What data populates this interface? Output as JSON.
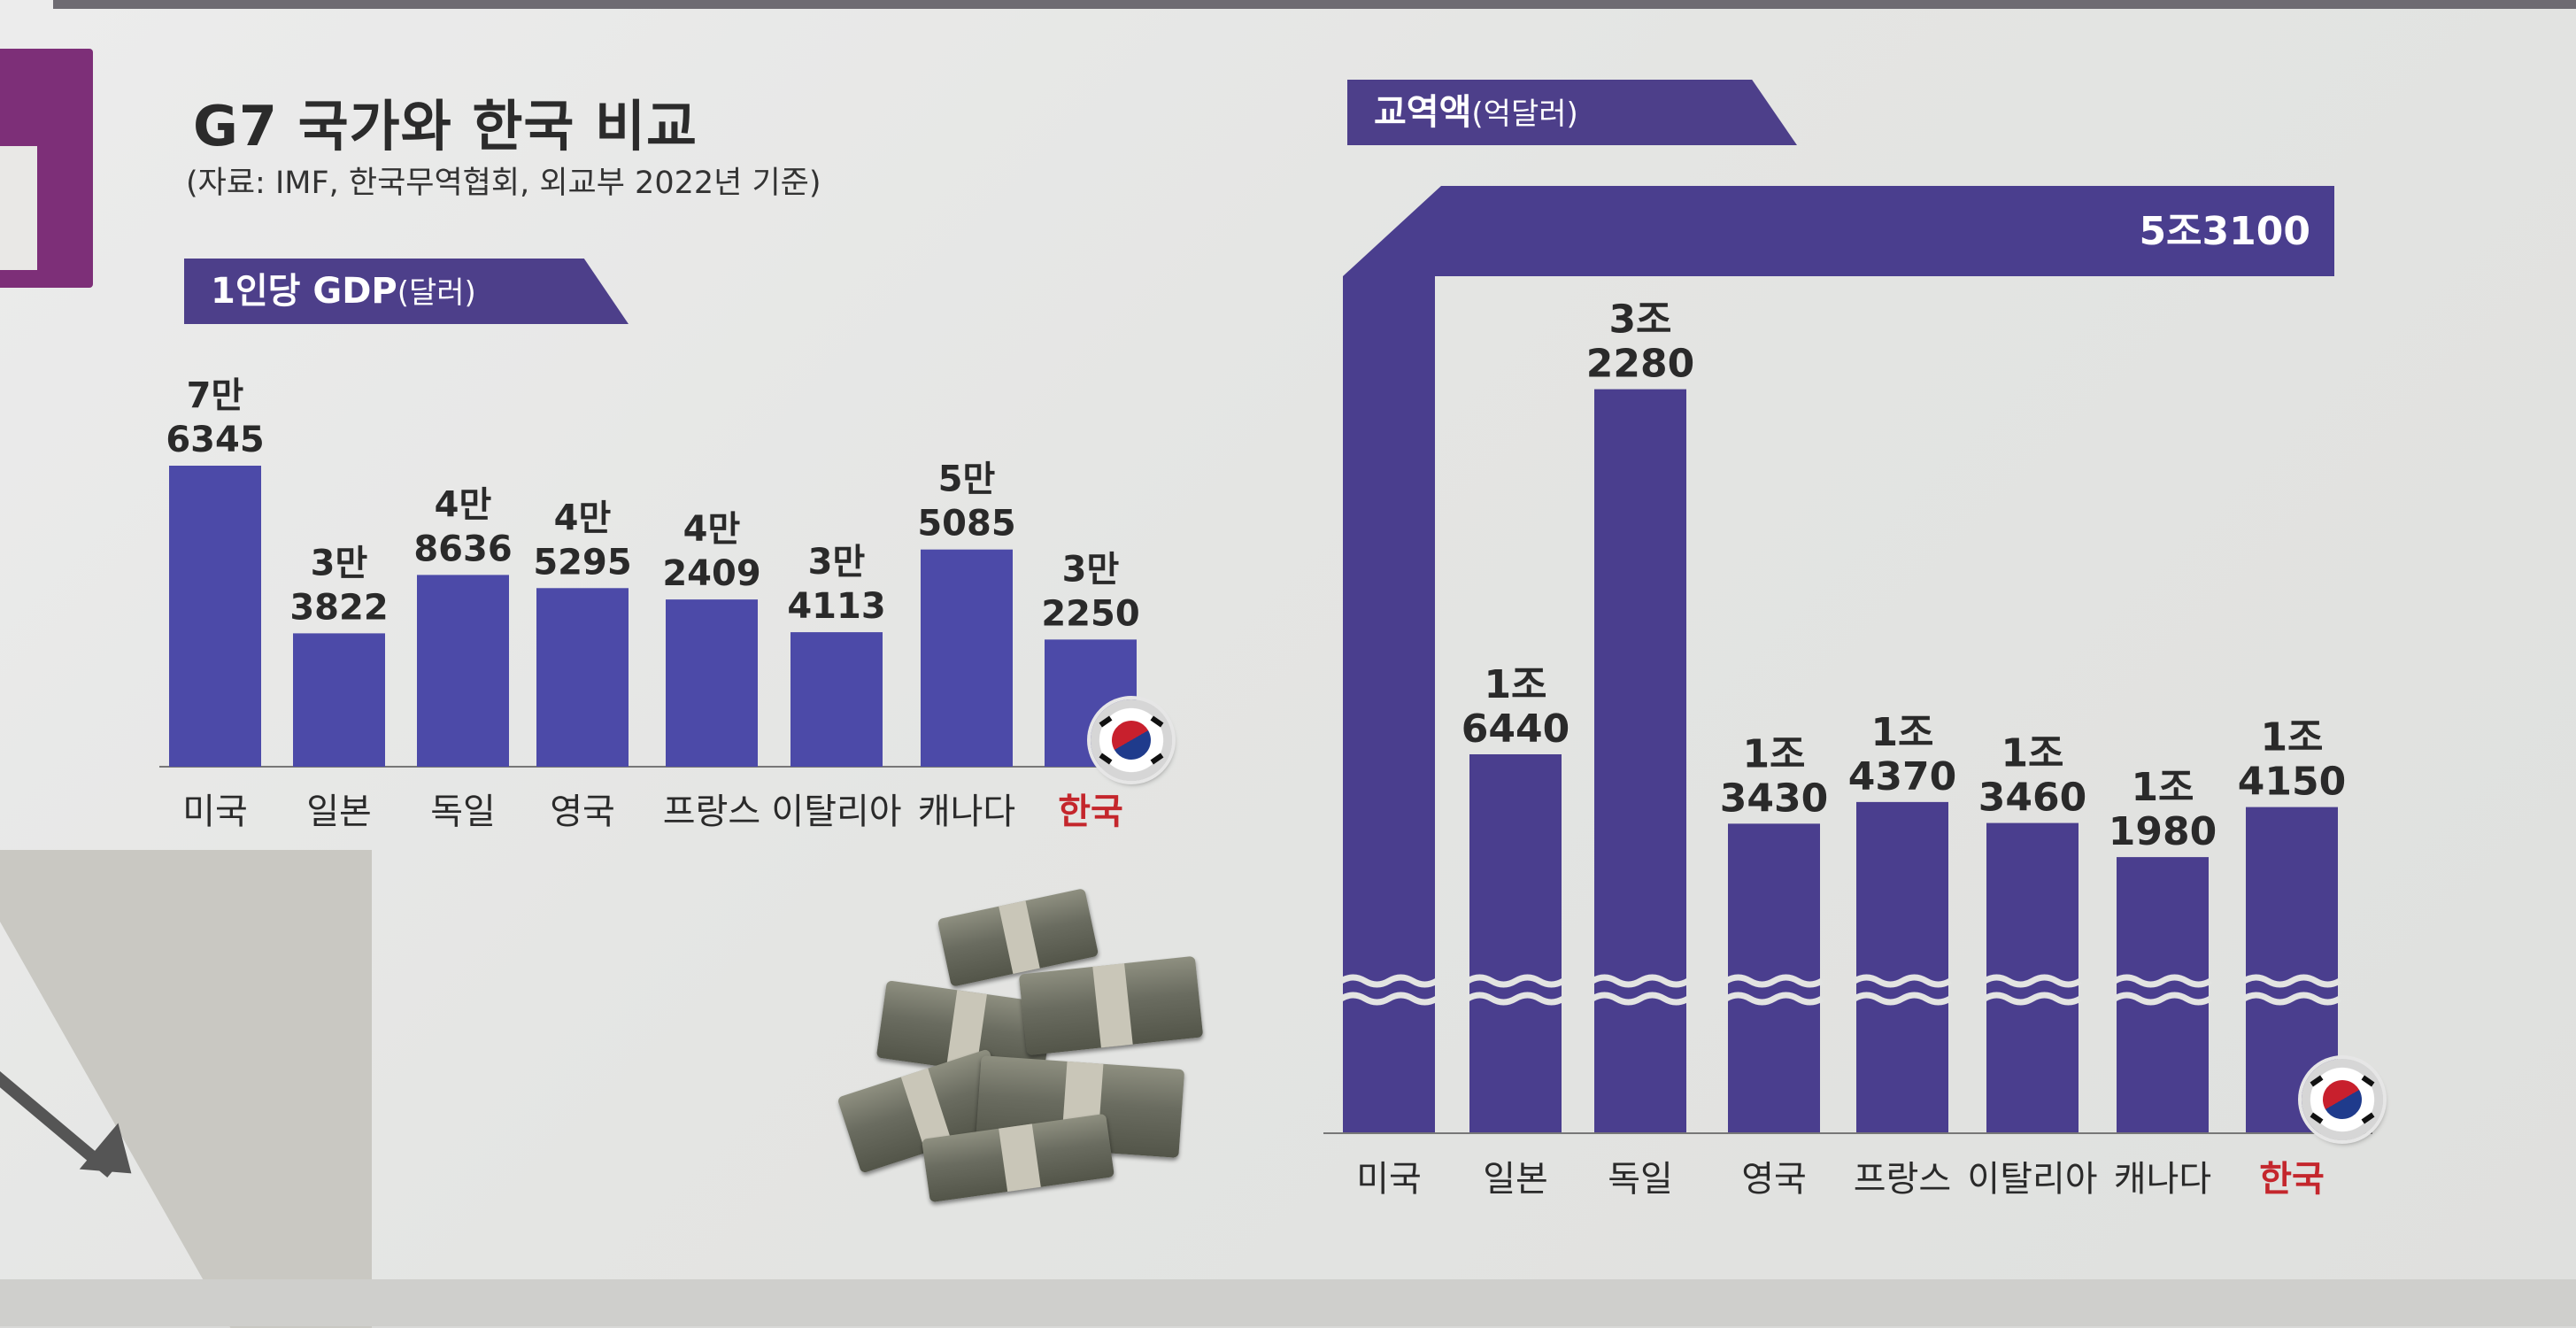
{
  "title": "G7 국가와 한국 비교",
  "source": "(자료: IMF, 한국무역협회, 외교부 2022년 기준)",
  "panels": {
    "gdp": {
      "tag": "1인당 GDP",
      "unit": "(달러)"
    },
    "trade": {
      "tag": "교역액",
      "unit": "(억달러)"
    }
  },
  "colors": {
    "bar_gdp": "#4c4aa8",
    "bar_trade": "#4a3e8e",
    "highlight_label": "#c4262c"
  },
  "icons": [
    "korea-flag-icon",
    "money-stack-icon",
    "wave-break-icon",
    "arrow-icon"
  ],
  "chart_data": [
    {
      "type": "bar",
      "title": "1인당 GDP(달러)",
      "categories": [
        "미국",
        "일본",
        "독일",
        "영국",
        "프랑스",
        "이탈리아",
        "캐나다",
        "한국"
      ],
      "values": [
        76345,
        33822,
        48636,
        45295,
        42409,
        34113,
        55085,
        32250
      ],
      "data_labels": [
        [
          "7만",
          "6345"
        ],
        [
          "3만",
          "3822"
        ],
        [
          "4만",
          "8636"
        ],
        [
          "4만",
          "5295"
        ],
        [
          "4만",
          "2409"
        ],
        [
          "3만",
          "4113"
        ],
        [
          "5만",
          "5085"
        ],
        [
          "3만",
          "2250"
        ]
      ],
      "highlight": "한국",
      "ylim": [
        0,
        80000
      ]
    },
    {
      "type": "bar",
      "title": "교역액(억달러)",
      "categories": [
        "미국",
        "일본",
        "독일",
        "영국",
        "프랑스",
        "이탈리아",
        "캐나다",
        "한국"
      ],
      "values": [
        53100,
        16440,
        32280,
        13430,
        14370,
        13460,
        11980,
        14150
      ],
      "data_labels": [
        [
          "5조3100"
        ],
        [
          "1조",
          "6440"
        ],
        [
          "3조",
          "2280"
        ],
        [
          "1조",
          "3430"
        ],
        [
          "1조",
          "4370"
        ],
        [
          "1조",
          "3460"
        ],
        [
          "1조",
          "1980"
        ],
        [
          "1조",
          "4150"
        ]
      ],
      "highlight": "한국",
      "axis_break": true
    }
  ]
}
